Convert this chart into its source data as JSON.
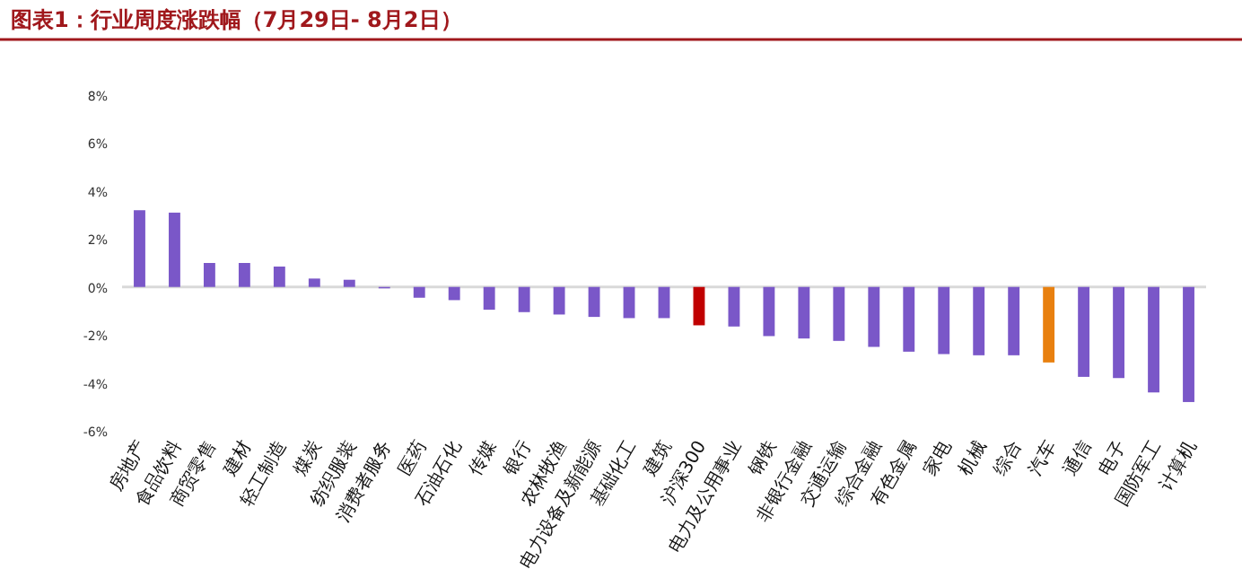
{
  "chart_data": {
    "type": "bar",
    "title": "图表1：行业周度涨跌幅（7月29日- 8月2日）",
    "categories": [
      "房地产",
      "食品饮料",
      "商贸零售",
      "建材",
      "轻工制造",
      "煤炭",
      "纺织服装",
      "消费者服务",
      "医药",
      "石油石化",
      "传媒",
      "银行",
      "农林牧渔",
      "电力设备及新能源",
      "基础化工",
      "建筑",
      "沪深300",
      "电力及公用事业",
      "钢铁",
      "非银行金融",
      "交通运输",
      "综合金融",
      "有色金属",
      "家电",
      "机械",
      "综合",
      "汽车",
      "通信",
      "电子",
      "国防军工",
      "计算机"
    ],
    "values": [
      3.2,
      3.1,
      1.0,
      1.0,
      0.85,
      0.35,
      0.3,
      -0.05,
      -0.45,
      -0.55,
      -0.95,
      -1.05,
      -1.15,
      -1.25,
      -1.3,
      -1.3,
      -1.6,
      -1.65,
      -2.05,
      -2.15,
      -2.25,
      -2.5,
      -2.7,
      -2.8,
      -2.85,
      -2.85,
      -3.15,
      -3.75,
      -3.8,
      -4.4,
      -4.8
    ],
    "colors": [
      "#7a57c8",
      "#7a57c8",
      "#7a57c8",
      "#7a57c8",
      "#7a57c8",
      "#7a57c8",
      "#7a57c8",
      "#7a57c8",
      "#7a57c8",
      "#7a57c8",
      "#7a57c8",
      "#7a57c8",
      "#7a57c8",
      "#7a57c8",
      "#7a57c8",
      "#7a57c8",
      "#c00000",
      "#7a57c8",
      "#7a57c8",
      "#7a57c8",
      "#7a57c8",
      "#7a57c8",
      "#7a57c8",
      "#7a57c8",
      "#7a57c8",
      "#7a57c8",
      "#e8800f",
      "#7a57c8",
      "#7a57c8",
      "#7a57c8",
      "#7a57c8"
    ],
    "ylim": [
      -6,
      8
    ],
    "yticks": [
      {
        "value": -6,
        "label": "-6%"
      },
      {
        "value": -4,
        "label": "-4%"
      },
      {
        "value": -2,
        "label": "-2%"
      },
      {
        "value": 0,
        "label": "0%"
      },
      {
        "value": 2,
        "label": "2%"
      },
      {
        "value": 4,
        "label": "4%"
      },
      {
        "value": 6,
        "label": "6%"
      },
      {
        "value": 8,
        "label": "8%"
      }
    ]
  }
}
